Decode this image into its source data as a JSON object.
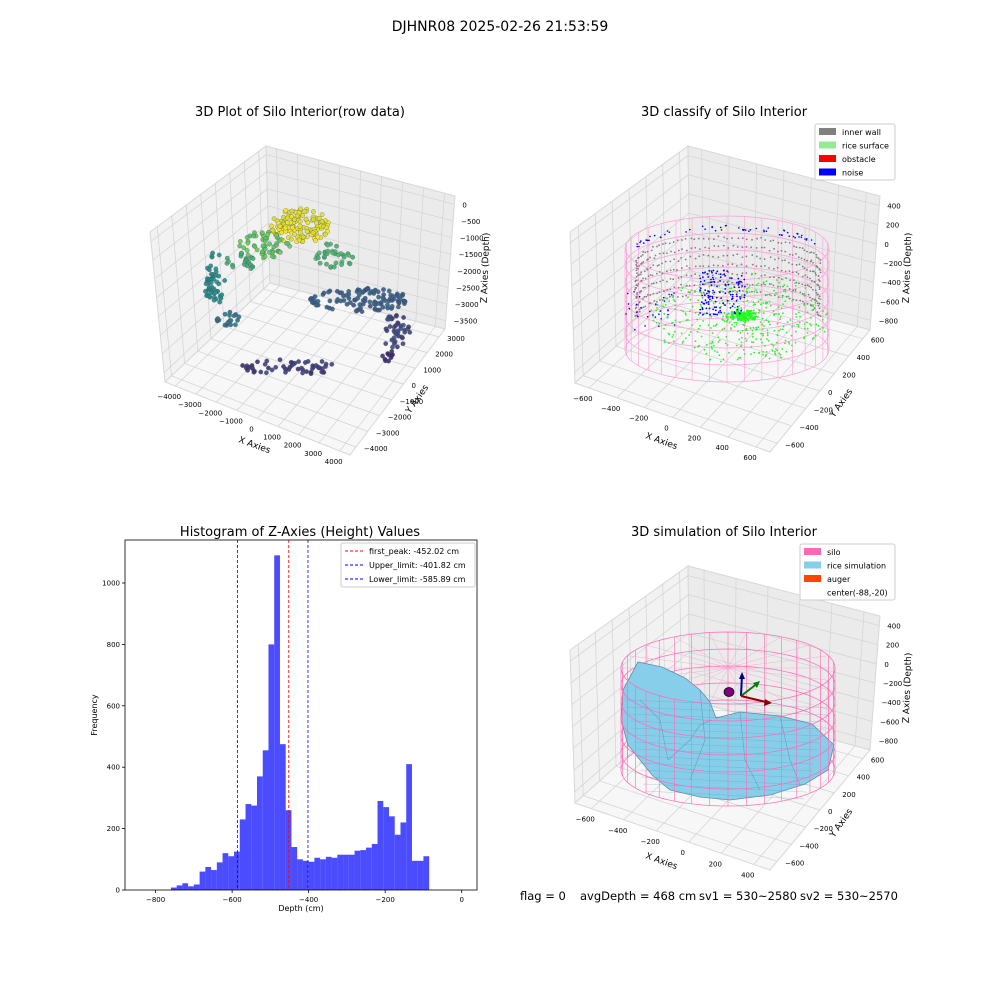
{
  "suptitle": "DJHNR08 2025-02-26 21:53:59",
  "footer": {
    "flag": "flag = 0",
    "avg": "avgDepth = 468 cm",
    "sv1": "sv1 = 530~2580",
    "sv2": "sv2 = 530~2570"
  },
  "chart_data": [
    {
      "type": "scatter",
      "subtype": "3d",
      "title": "3D Plot of Silo Interior(row data)",
      "xlabel": "X Axies",
      "ylabel": "Y Axies",
      "zlabel": "Z Axies (Depth)",
      "xticks": [
        "−4000",
        "−3000",
        "−2000",
        "−1000",
        "0",
        "1000",
        "2000",
        "3000",
        "4000"
      ],
      "yticks": [
        "−4000",
        "−3000",
        "−2000",
        "−1000",
        "0",
        "1000",
        "2000",
        "3000"
      ],
      "zticks": [
        "0",
        "−500",
        "−1000",
        "−1500",
        "−2000",
        "−2500",
        "−3000",
        "−3500"
      ],
      "colormap": "viridis"
    },
    {
      "type": "scatter",
      "subtype": "3d",
      "title": "3D classify of Silo Interior",
      "xlabel": "X Axies",
      "ylabel": "Y Axies",
      "zlabel": "Z Axies (Depth)",
      "xticks": [
        "−600",
        "−400",
        "−200",
        "0",
        "200",
        "400",
        "600"
      ],
      "yticks": [
        "−600",
        "−400",
        "−200",
        "0",
        "200",
        "400",
        "600"
      ],
      "zticks": [
        "400",
        "200",
        "0",
        "−200",
        "−400",
        "−600",
        "−800"
      ],
      "legend": [
        {
          "label": "inner wall",
          "color": "#808080"
        },
        {
          "label": "rice surface",
          "color": "#90ee90"
        },
        {
          "label": "obstacle",
          "color": "#ff0000"
        },
        {
          "label": "noise",
          "color": "#0000ff"
        }
      ],
      "legend_position": "top-right"
    },
    {
      "type": "bar",
      "subtype": "histogram",
      "title": "Histogram of Z-Axies (Height) Values",
      "xlabel": "Depth (cm)",
      "ylabel": "Frequency",
      "xlim": [
        -880,
        40
      ],
      "ylim": [
        0,
        1140
      ],
      "xticks": [
        -800,
        -600,
        -400,
        -200,
        0
      ],
      "xtick_labels": [
        "−800",
        "−600",
        "−400",
        "−200",
        "0"
      ],
      "yticks": [
        0,
        200,
        400,
        600,
        800,
        1000
      ],
      "bin_start": -760,
      "bin_width": 15,
      "color": "#0000ff",
      "values": [
        8,
        15,
        22,
        12,
        18,
        60,
        75,
        65,
        90,
        120,
        110,
        125,
        230,
        280,
        275,
        370,
        455,
        800,
        1090,
        475,
        260,
        140,
        100,
        95,
        92,
        105,
        100,
        108,
        105,
        115,
        115,
        115,
        128,
        130,
        138,
        150,
        290,
        270,
        240,
        180,
        220,
        410,
        95,
        95,
        110
      ],
      "vlines": [
        {
          "label": "first_peak: -452.02 cm",
          "x": -452.02,
          "color": "#ff0000"
        },
        {
          "label": "Upper_limit: -401.82 cm",
          "x": -401.82,
          "color": "#0000ff"
        },
        {
          "label": "Lower_limit: -585.89 cm",
          "x": -585.89,
          "color": "#0000ff"
        }
      ],
      "legend_position": "top-right"
    },
    {
      "type": "area",
      "subtype": "3d-surface",
      "title": "3D simulation of Silo Interior",
      "xlabel": "X Axies",
      "ylabel": "Y Axies",
      "zlabel": "Z Axies (Depth)",
      "xticks": [
        "−600",
        "−400",
        "−200",
        "0",
        "200",
        "400"
      ],
      "yticks": [
        "−600",
        "−400",
        "−200",
        "0",
        "200",
        "400",
        "600"
      ],
      "zticks": [
        "400",
        "200",
        "0",
        "−200",
        "−400",
        "−600",
        "−800"
      ],
      "legend": [
        {
          "label": "silo",
          "color": "#ff69b4"
        },
        {
          "label": "rice simulation",
          "color": "#87ceeb"
        },
        {
          "label": "auger",
          "color": "#ff4500"
        },
        {
          "label": "center(-88,-20)",
          "color": ""
        }
      ],
      "legend_position": "top-right"
    }
  ]
}
